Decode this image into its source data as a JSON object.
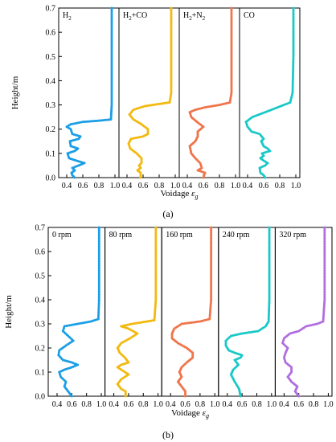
{
  "figure": {
    "label_a": "(a)",
    "label_b": "(b)"
  },
  "chart_data": [
    {
      "type": "line",
      "id": "a",
      "ylabel": "Height/m",
      "xlabel_main": "Voidage ",
      "xlabel_symbol": "ε",
      "xlabel_sub": "g",
      "ylim": [
        0,
        0.7
      ],
      "yticks": [
        "0.0",
        "0.1",
        "0.2",
        "0.3",
        "0.4",
        "0.5",
        "0.6",
        "0.7"
      ],
      "xlim": [
        0.3,
        1.05
      ],
      "xticks": [
        "0.4",
        "0.6",
        "0.8",
        "1.0"
      ],
      "panels": [
        {
          "label_parts": [
            {
              "t": "H"
            },
            {
              "t": "2",
              "sub": true
            }
          ],
          "color": "#1a9ee6",
          "points": [
            [
              0.5,
              0.0
            ],
            [
              0.47,
              0.01
            ],
            [
              0.46,
              0.02
            ],
            [
              0.5,
              0.03
            ],
            [
              0.47,
              0.04
            ],
            [
              0.55,
              0.05
            ],
            [
              0.62,
              0.06
            ],
            [
              0.52,
              0.07
            ],
            [
              0.43,
              0.08
            ],
            [
              0.41,
              0.1
            ],
            [
              0.5,
              0.11
            ],
            [
              0.54,
              0.12
            ],
            [
              0.45,
              0.13
            ],
            [
              0.44,
              0.15
            ],
            [
              0.55,
              0.16
            ],
            [
              0.57,
              0.17
            ],
            [
              0.47,
              0.18
            ],
            [
              0.45,
              0.2
            ],
            [
              0.4,
              0.21
            ],
            [
              0.45,
              0.22
            ],
            [
              0.6,
              0.23
            ],
            [
              0.8,
              0.235
            ],
            [
              0.95,
              0.24
            ],
            [
              0.96,
              0.3
            ],
            [
              0.96,
              0.5
            ],
            [
              0.96,
              0.7
            ]
          ]
        },
        {
          "label_parts": [
            {
              "t": "H"
            },
            {
              "t": "2",
              "sub": true
            },
            {
              "t": "+CO"
            }
          ],
          "color": "#f2b90f",
          "points": [
            [
              0.57,
              0.0
            ],
            [
              0.57,
              0.02
            ],
            [
              0.53,
              0.03
            ],
            [
              0.57,
              0.04
            ],
            [
              0.55,
              0.05
            ],
            [
              0.58,
              0.06
            ],
            [
              0.58,
              0.08
            ],
            [
              0.52,
              0.1
            ],
            [
              0.44,
              0.12
            ],
            [
              0.42,
              0.14
            ],
            [
              0.45,
              0.16
            ],
            [
              0.6,
              0.17
            ],
            [
              0.66,
              0.18
            ],
            [
              0.66,
              0.2
            ],
            [
              0.58,
              0.22
            ],
            [
              0.48,
              0.24
            ],
            [
              0.43,
              0.26
            ],
            [
              0.48,
              0.28
            ],
            [
              0.62,
              0.295
            ],
            [
              0.82,
              0.305
            ],
            [
              0.93,
              0.31
            ],
            [
              0.95,
              0.35
            ],
            [
              0.95,
              0.5
            ],
            [
              0.95,
              0.7
            ]
          ]
        },
        {
          "label_parts": [
            {
              "t": "H"
            },
            {
              "t": "2",
              "sub": true
            },
            {
              "t": "+N"
            },
            {
              "t": "2",
              "sub": true
            }
          ],
          "color": "#f0744a",
          "points": [
            [
              0.6,
              0.0
            ],
            [
              0.62,
              0.02
            ],
            [
              0.53,
              0.03
            ],
            [
              0.58,
              0.04
            ],
            [
              0.56,
              0.06
            ],
            [
              0.5,
              0.08
            ],
            [
              0.45,
              0.1
            ],
            [
              0.43,
              0.13
            ],
            [
              0.5,
              0.15
            ],
            [
              0.53,
              0.17
            ],
            [
              0.53,
              0.19
            ],
            [
              0.6,
              0.21
            ],
            [
              0.52,
              0.23
            ],
            [
              0.45,
              0.25
            ],
            [
              0.43,
              0.27
            ],
            [
              0.5,
              0.28
            ],
            [
              0.62,
              0.29
            ],
            [
              0.8,
              0.3
            ],
            [
              0.93,
              0.31
            ],
            [
              0.95,
              0.35
            ],
            [
              0.95,
              0.5
            ],
            [
              0.95,
              0.7
            ]
          ]
        },
        {
          "label_parts": [
            {
              "t": "CO"
            }
          ],
          "color": "#1ac8c8",
          "points": [
            [
              0.62,
              0.0
            ],
            [
              0.6,
              0.01
            ],
            [
              0.56,
              0.02
            ],
            [
              0.55,
              0.04
            ],
            [
              0.62,
              0.05
            ],
            [
              0.65,
              0.06
            ],
            [
              0.6,
              0.07
            ],
            [
              0.56,
              0.08
            ],
            [
              0.6,
              0.09
            ],
            [
              0.58,
              0.1
            ],
            [
              0.68,
              0.11
            ],
            [
              0.65,
              0.12
            ],
            [
              0.6,
              0.13
            ],
            [
              0.57,
              0.15
            ],
            [
              0.6,
              0.16
            ],
            [
              0.55,
              0.18
            ],
            [
              0.45,
              0.19
            ],
            [
              0.4,
              0.21
            ],
            [
              0.38,
              0.23
            ],
            [
              0.46,
              0.25
            ],
            [
              0.62,
              0.27
            ],
            [
              0.85,
              0.3
            ],
            [
              0.93,
              0.31
            ],
            [
              0.96,
              0.35
            ],
            [
              0.97,
              0.5
            ],
            [
              0.97,
              0.7
            ]
          ]
        }
      ]
    },
    {
      "type": "line",
      "id": "b",
      "ylabel": "Height/m",
      "xlabel_main": "Voidage ",
      "xlabel_symbol": "ε",
      "xlabel_sub": "g",
      "ylim": [
        0,
        0.7
      ],
      "yticks": [
        "0.0",
        "0.1",
        "0.2",
        "0.3",
        "0.4",
        "0.5",
        "0.6",
        "0.7"
      ],
      "xlim": [
        0.28,
        1.05
      ],
      "xticks": [
        "0.4",
        "0.6",
        "0.8",
        "1.0"
      ],
      "panels": [
        {
          "label_parts": [
            {
              "t": "0 rpm"
            }
          ],
          "color": "#1a9ee6",
          "points": [
            [
              0.6,
              0.0
            ],
            [
              0.55,
              0.02
            ],
            [
              0.5,
              0.04
            ],
            [
              0.52,
              0.06
            ],
            [
              0.45,
              0.08
            ],
            [
              0.43,
              0.1
            ],
            [
              0.5,
              0.11
            ],
            [
              0.6,
              0.12
            ],
            [
              0.68,
              0.13
            ],
            [
              0.6,
              0.14
            ],
            [
              0.48,
              0.15
            ],
            [
              0.42,
              0.17
            ],
            [
              0.43,
              0.19
            ],
            [
              0.52,
              0.21
            ],
            [
              0.62,
              0.23
            ],
            [
              0.55,
              0.25
            ],
            [
              0.48,
              0.27
            ],
            [
              0.5,
              0.29
            ],
            [
              0.68,
              0.3
            ],
            [
              0.86,
              0.31
            ],
            [
              0.96,
              0.32
            ],
            [
              0.97,
              0.4
            ],
            [
              0.97,
              0.55
            ],
            [
              0.97,
              0.7
            ]
          ]
        },
        {
          "label_parts": [
            {
              "t": "80 rpm"
            }
          ],
          "color": "#f2b90f",
          "points": [
            [
              0.56,
              0.0
            ],
            [
              0.56,
              0.02
            ],
            [
              0.5,
              0.03
            ],
            [
              0.45,
              0.05
            ],
            [
              0.5,
              0.07
            ],
            [
              0.6,
              0.09
            ],
            [
              0.55,
              0.1
            ],
            [
              0.45,
              0.12
            ],
            [
              0.5,
              0.13
            ],
            [
              0.6,
              0.14
            ],
            [
              0.55,
              0.16
            ],
            [
              0.48,
              0.18
            ],
            [
              0.45,
              0.2
            ],
            [
              0.5,
              0.22
            ],
            [
              0.62,
              0.24
            ],
            [
              0.72,
              0.26
            ],
            [
              0.6,
              0.28
            ],
            [
              0.5,
              0.29
            ],
            [
              0.65,
              0.3
            ],
            [
              0.85,
              0.31
            ],
            [
              0.95,
              0.315
            ],
            [
              0.97,
              0.4
            ],
            [
              0.97,
              0.55
            ],
            [
              0.97,
              0.7
            ]
          ]
        },
        {
          "label_parts": [
            {
              "t": "160 rpm"
            }
          ],
          "color": "#f0744a",
          "points": [
            [
              0.6,
              0.0
            ],
            [
              0.6,
              0.02
            ],
            [
              0.55,
              0.04
            ],
            [
              0.5,
              0.06
            ],
            [
              0.55,
              0.08
            ],
            [
              0.52,
              0.1
            ],
            [
              0.55,
              0.12
            ],
            [
              0.62,
              0.14
            ],
            [
              0.7,
              0.16
            ],
            [
              0.7,
              0.18
            ],
            [
              0.62,
              0.2
            ],
            [
              0.5,
              0.22
            ],
            [
              0.42,
              0.24
            ],
            [
              0.42,
              0.26
            ],
            [
              0.45,
              0.28
            ],
            [
              0.55,
              0.3
            ],
            [
              0.8,
              0.31
            ],
            [
              0.93,
              0.32
            ],
            [
              0.95,
              0.4
            ],
            [
              0.95,
              0.55
            ],
            [
              0.95,
              0.7
            ]
          ]
        },
        {
          "label_parts": [
            {
              "t": "240 rpm"
            }
          ],
          "color": "#1ac8c8",
          "points": [
            [
              0.58,
              0.0
            ],
            [
              0.56,
              0.03
            ],
            [
              0.5,
              0.06
            ],
            [
              0.45,
              0.09
            ],
            [
              0.48,
              0.11
            ],
            [
              0.55,
              0.13
            ],
            [
              0.5,
              0.15
            ],
            [
              0.58,
              0.16
            ],
            [
              0.6,
              0.17
            ],
            [
              0.5,
              0.18
            ],
            [
              0.42,
              0.19
            ],
            [
              0.38,
              0.21
            ],
            [
              0.38,
              0.23
            ],
            [
              0.45,
              0.25
            ],
            [
              0.6,
              0.26
            ],
            [
              0.82,
              0.27
            ],
            [
              0.92,
              0.29
            ],
            [
              0.96,
              0.31
            ],
            [
              0.97,
              0.4
            ],
            [
              0.97,
              0.55
            ],
            [
              0.97,
              0.7
            ]
          ]
        },
        {
          "label_parts": [
            {
              "t": "320 rpm"
            }
          ],
          "color": "#b06ee0",
          "points": [
            [
              0.6,
              0.0
            ],
            [
              0.55,
              0.02
            ],
            [
              0.58,
              0.04
            ],
            [
              0.5,
              0.06
            ],
            [
              0.45,
              0.08
            ],
            [
              0.5,
              0.1
            ],
            [
              0.5,
              0.12
            ],
            [
              0.42,
              0.14
            ],
            [
              0.4,
              0.16
            ],
            [
              0.42,
              0.18
            ],
            [
              0.45,
              0.2
            ],
            [
              0.38,
              0.22
            ],
            [
              0.4,
              0.24
            ],
            [
              0.48,
              0.26
            ],
            [
              0.6,
              0.27
            ],
            [
              0.7,
              0.29
            ],
            [
              0.85,
              0.3
            ],
            [
              0.93,
              0.31
            ],
            [
              0.95,
              0.4
            ],
            [
              0.95,
              0.55
            ],
            [
              0.95,
              0.7
            ]
          ]
        }
      ]
    }
  ]
}
